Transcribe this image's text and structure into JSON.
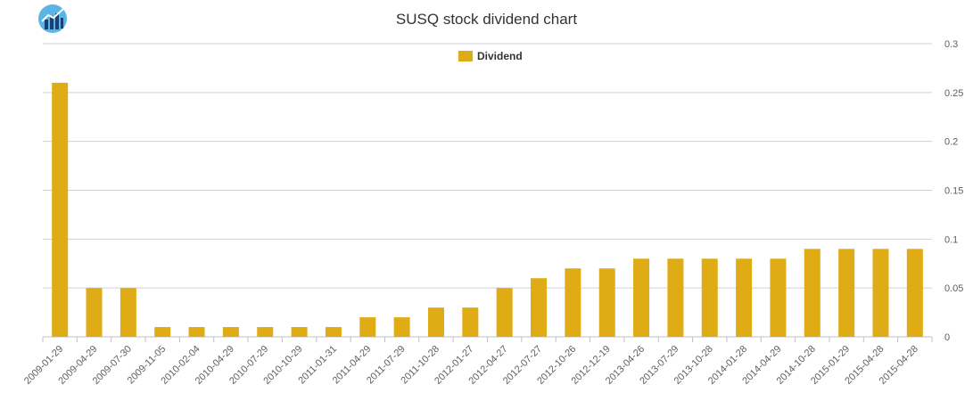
{
  "chart_data": {
    "type": "bar",
    "title": "SUSQ stock dividend chart",
    "categories": [
      "2009-01-29",
      "2009-04-29",
      "2009-07-30",
      "2009-11-05",
      "2010-02-04",
      "2010-04-29",
      "2010-07-29",
      "2010-10-29",
      "2011-01-31",
      "2011-04-29",
      "2011-07-29",
      "2011-10-28",
      "2012-01-27",
      "2012-04-27",
      "2012-07-27",
      "2012-10-26",
      "2012-12-19",
      "2013-04-26",
      "2013-07-29",
      "2013-10-28",
      "2014-01-28",
      "2014-04-29",
      "2014-10-28",
      "2015-01-29",
      "2015-04-28",
      "2015-04-28"
    ],
    "series": [
      {
        "name": "Dividend",
        "color": "#e0ac16",
        "values": [
          0.26,
          0.05,
          0.05,
          0.01,
          0.01,
          0.01,
          0.01,
          0.01,
          0.01,
          0.02,
          0.02,
          0.03,
          0.03,
          0.05,
          0.06,
          0.07,
          0.07,
          0.08,
          0.08,
          0.08,
          0.08,
          0.08,
          0.09,
          0.09,
          0.09,
          0.09
        ]
      }
    ],
    "ylim": [
      0,
      0.3
    ],
    "yticks": [
      "0",
      "0.05",
      "0.1",
      "0.15",
      "0.2",
      "0.25",
      "0.3"
    ],
    "ytick_values": [
      0,
      0.05,
      0.1,
      0.15,
      0.2,
      0.25,
      0.3
    ],
    "y_axis_side": "right",
    "legend_position": "top-center",
    "grid": true,
    "xlabel": "",
    "ylabel": ""
  },
  "logo_icon": "bar-chart-logo-icon"
}
